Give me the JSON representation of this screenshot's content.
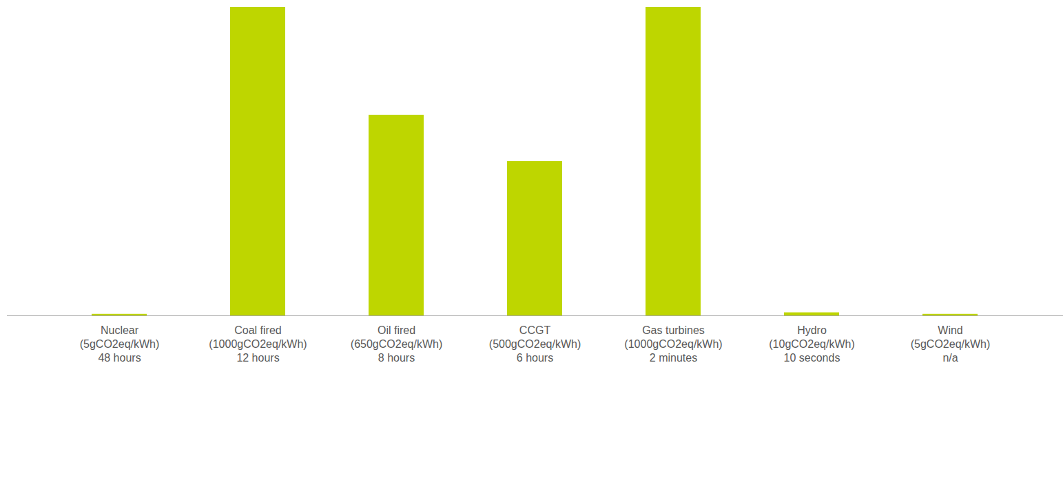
{
  "chart_data": {
    "type": "bar",
    "categories": [
      "Nuclear",
      "Coal fired",
      "Oil fired",
      "CCGT",
      "Gas turbines",
      "Hydro",
      "Wind"
    ],
    "values": [
      5,
      1000,
      650,
      500,
      1000,
      10,
      5
    ],
    "value_labels": [
      "(5gCO2eq/kWh)",
      "(1000gCO2eq/kWh)",
      "(650gCO2eq/kWh)",
      "(500gCO2eq/kWh)",
      "(1000gCO2eq/kWh)",
      "(10gCO2eq/kWh)",
      "(5gCO2eq/kWh)"
    ],
    "annotations": [
      "48 hours",
      "12 hours",
      "8 hours",
      "6 hours",
      "2 minutes",
      "10 seconds",
      "n/a"
    ],
    "color": "#bed600",
    "ylim": [
      0,
      1000
    ],
    "tick_labels": "x",
    "grid": false
  }
}
